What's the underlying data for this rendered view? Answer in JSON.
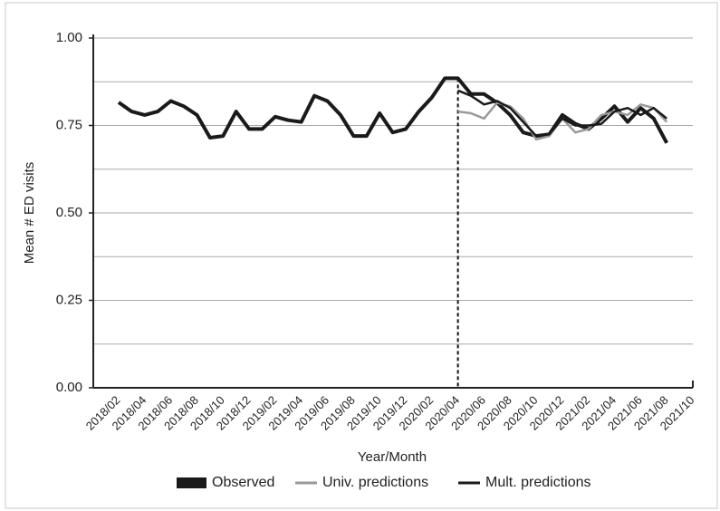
{
  "chart_data": {
    "type": "line",
    "x_label": "Year/Month",
    "y_label": "Mean # ED visits",
    "categories": [
      "2018/02",
      null,
      "2018/04",
      null,
      "2018/06",
      null,
      "2018/08",
      null,
      "2018/10",
      null,
      "2018/12",
      null,
      "2019/02",
      null,
      "2019/04",
      null,
      "2019/06",
      null,
      "2019/08",
      null,
      "2019/10",
      null,
      "2019/12",
      null,
      "2020/02",
      null,
      "2020/04",
      null,
      "2020/06",
      null,
      "2020/08",
      null,
      "2020/10",
      null,
      "2020/12",
      null,
      "2021/02",
      null,
      "2021/04",
      null,
      "2021/06",
      null,
      "2021/08",
      null,
      "2021/10"
    ],
    "series": [
      {
        "name": "Observed",
        "color": "#1a1a1a",
        "values": [
          0.816,
          0.79,
          0.78,
          0.79,
          0.82,
          0.805,
          0.78,
          0.715,
          0.72,
          0.79,
          0.74,
          0.74,
          0.775,
          0.765,
          0.76,
          0.835,
          0.82,
          0.78,
          0.72,
          0.72,
          0.785,
          0.73,
          0.74,
          0.79,
          0.83,
          0.885,
          0.885,
          0.84,
          0.84,
          0.815,
          0.78,
          0.73,
          0.72,
          0.725,
          0.78,
          0.755,
          0.74,
          0.77,
          0.805,
          0.76,
          0.8,
          0.77,
          0.7,
          null,
          null
        ]
      },
      {
        "name": "Univ. predictions",
        "color": "#999999",
        "values": [
          null,
          null,
          null,
          null,
          null,
          null,
          null,
          null,
          null,
          null,
          null,
          null,
          null,
          null,
          null,
          null,
          null,
          null,
          null,
          null,
          null,
          null,
          null,
          null,
          null,
          null,
          0.79,
          0.785,
          0.77,
          0.815,
          0.805,
          0.77,
          0.71,
          0.72,
          0.77,
          0.73,
          0.74,
          0.78,
          0.79,
          0.78,
          0.81,
          0.8,
          0.76,
          null,
          null
        ]
      },
      {
        "name": "Mult. predictions",
        "color": "#1a1a1a",
        "values": [
          null,
          null,
          null,
          null,
          null,
          null,
          null,
          null,
          null,
          null,
          null,
          null,
          null,
          null,
          null,
          null,
          null,
          null,
          null,
          null,
          null,
          null,
          null,
          null,
          null,
          null,
          0.85,
          0.835,
          0.81,
          0.82,
          0.8,
          0.76,
          0.72,
          0.725,
          0.77,
          0.75,
          0.75,
          0.755,
          0.79,
          0.8,
          0.78,
          0.8,
          0.77,
          null,
          null
        ]
      }
    ],
    "divider_at": "2020/04",
    "ylim": [
      0,
      1
    ],
    "yticks": [
      {
        "value": 0,
        "label": "0.00"
      },
      {
        "value": 0.25,
        "label": "0.25"
      },
      {
        "value": 0.5,
        "label": "0.50"
      },
      {
        "value": 0.75,
        "label": "0.75"
      },
      {
        "value": 1,
        "label": "1.00"
      }
    ],
    "ygrid": [
      0.125,
      0.25,
      0.375,
      0.5,
      0.625,
      0.75,
      0.875,
      1
    ],
    "legend": "bottom"
  }
}
